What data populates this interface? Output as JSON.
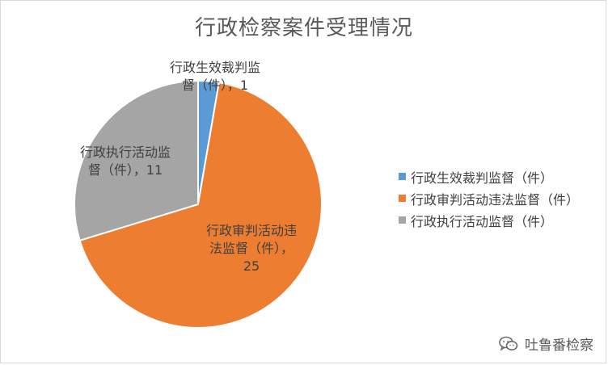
{
  "chart_data": {
    "type": "pie",
    "title": "行政检察案件受理情况",
    "categories": [
      "行政生效裁判监督（件）",
      "行政审判活动违法监督（件）",
      "行政执行活动监督（件）"
    ],
    "values": [
      1,
      25,
      11
    ],
    "colors": [
      "#5b9bd5",
      "#ed7d31",
      "#a5a5a5"
    ],
    "data_labels": [
      "行政生效裁判监\n督（件），1",
      "行政审判活动违\n法监督（件），\n25",
      "行政执行活动监\n督（件），11"
    ],
    "legend_position": "right"
  },
  "watermark": {
    "text": "吐鲁番检察",
    "icon": "wechat-icon"
  }
}
